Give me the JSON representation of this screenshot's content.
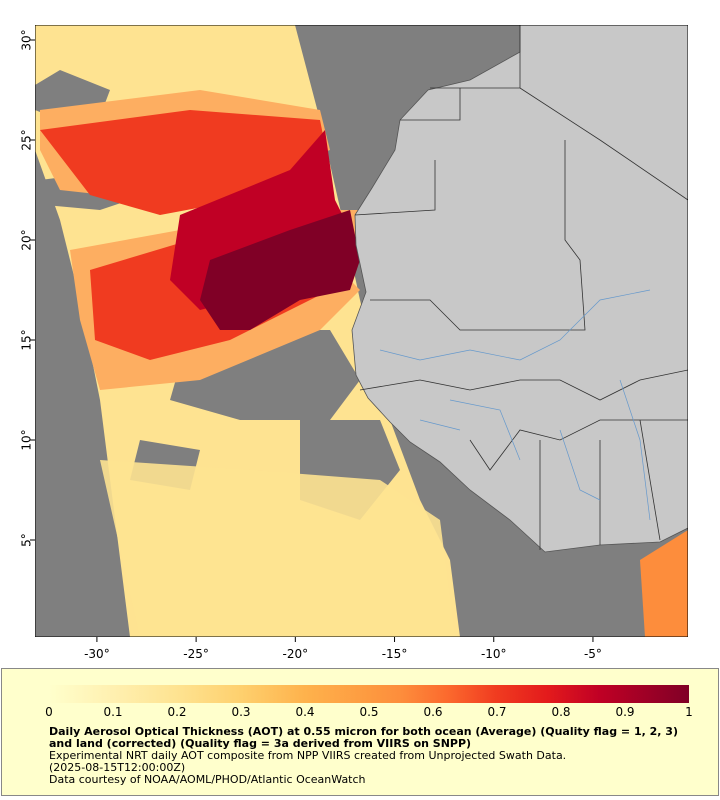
{
  "map": {
    "xlim": [
      -33.12,
      -0.21
    ],
    "ylim": [
      0.15,
      30.75
    ],
    "xticks": [
      {
        "value": -30,
        "label": "-30°"
      },
      {
        "value": -25,
        "label": "-25°"
      },
      {
        "value": -20,
        "label": "-20°"
      },
      {
        "value": -15,
        "label": "-15°"
      },
      {
        "value": -10,
        "label": "-10°"
      },
      {
        "value": -5,
        "label": "-5°"
      }
    ],
    "yticks": [
      {
        "value": 30,
        "label": "30°"
      },
      {
        "value": 25,
        "label": "25°"
      },
      {
        "value": 20,
        "label": "20°"
      },
      {
        "value": 15,
        "label": "15°"
      },
      {
        "value": 10,
        "label": "10°"
      },
      {
        "value": 5,
        "label": "5°"
      }
    ]
  },
  "colorbar": {
    "lim": [
      0,
      1
    ],
    "ticks": [
      0,
      0.1,
      0.2,
      0.3,
      0.4,
      0.5,
      0.6,
      0.7,
      0.8,
      0.9,
      1
    ],
    "title": "Daily Aerosol Optical Thickness (AOT) at 0.55 micron for both ocean (Average) (Quality flag = 1, 2, 3) and land (corrected) (Quality flag = 3a derived from VIIRS on SNPP)",
    "lines": [
      "Experimental NRT daily AOT composite from NPP VIIRS created from Unprojected Swath Data.",
      "(2025-08-15T12:00:00Z)",
      "Data courtesy of NOAA/AOML/PHOD/Atlantic OceanWatch"
    ]
  }
}
